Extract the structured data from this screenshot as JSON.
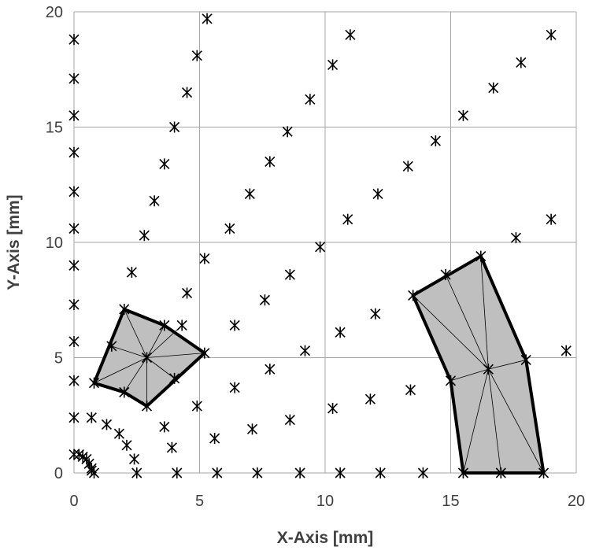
{
  "chart_data": {
    "type": "scatter",
    "title": "",
    "xlabel": "X-Axis [mm]",
    "ylabel": "Y-Axis [mm]",
    "xlim": [
      0,
      20
    ],
    "ylim": [
      0,
      20
    ],
    "xticks": [
      0,
      5,
      10,
      15,
      20
    ],
    "yticks": [
      0,
      5,
      10,
      15,
      20
    ],
    "grid": true,
    "marker": "asterisk",
    "colors": {
      "marker": "#000000",
      "grid": "#a6a6a6",
      "fill": "#bfbfbf",
      "outline": "#000000",
      "text": "#404040"
    },
    "points": [
      [
        0,
        18.8
      ],
      [
        0,
        17.1
      ],
      [
        0,
        15.5
      ],
      [
        0,
        13.9
      ],
      [
        0,
        12.2
      ],
      [
        0,
        10.6
      ],
      [
        0,
        9.0
      ],
      [
        0,
        7.3
      ],
      [
        0,
        5.7
      ],
      [
        0,
        4.0
      ],
      [
        0,
        2.4
      ],
      [
        0,
        0.8
      ],
      [
        0.2,
        0.8
      ],
      [
        0.35,
        0.7
      ],
      [
        0.5,
        0.6
      ],
      [
        0.6,
        0.4
      ],
      [
        0.7,
        0.2
      ],
      [
        0.8,
        0.0
      ],
      [
        0.7,
        0.1
      ],
      [
        0.7,
        2.4
      ],
      [
        1.3,
        2.1
      ],
      [
        1.8,
        1.7
      ],
      [
        2.1,
        1.2
      ],
      [
        2.4,
        0.6
      ],
      [
        2.5,
        0.0
      ],
      [
        3.6,
        2.0
      ],
      [
        3.9,
        1.1
      ],
      [
        4.1,
        0.0
      ],
      [
        5.6,
        1.5
      ],
      [
        5.7,
        0.0
      ],
      [
        7.1,
        1.9
      ],
      [
        7.3,
        0.0
      ],
      [
        8.6,
        2.3
      ],
      [
        9.0,
        0.0
      ],
      [
        10.3,
        2.8
      ],
      [
        10.6,
        0.0
      ],
      [
        11.8,
        3.2
      ],
      [
        12.2,
        0.0
      ],
      [
        13.4,
        3.6
      ],
      [
        13.9,
        0.0
      ],
      [
        0.8,
        3.9
      ],
      [
        2.0,
        3.5
      ],
      [
        2.9,
        2.9
      ],
      [
        4.0,
        4.1
      ],
      [
        5.2,
        5.2
      ],
      [
        4.3,
        6.4
      ],
      [
        3.6,
        6.4
      ],
      [
        2.0,
        7.1
      ],
      [
        1.5,
        5.5
      ],
      [
        2.9,
        5.0
      ],
      [
        4.9,
        2.9
      ],
      [
        6.4,
        3.7
      ],
      [
        7.8,
        4.5
      ],
      [
        9.2,
        5.3
      ],
      [
        10.6,
        6.1
      ],
      [
        12.0,
        6.9
      ],
      [
        13.5,
        7.7
      ],
      [
        14.8,
        8.6
      ],
      [
        16.2,
        9.4
      ],
      [
        17.6,
        10.2
      ],
      [
        19.0,
        11.0
      ],
      [
        4.5,
        7.8
      ],
      [
        6.4,
        6.4
      ],
      [
        7.6,
        7.5
      ],
      [
        8.6,
        8.6
      ],
      [
        9.8,
        9.8
      ],
      [
        10.9,
        11.0
      ],
      [
        12.1,
        12.1
      ],
      [
        13.3,
        13.3
      ],
      [
        14.4,
        14.4
      ],
      [
        15.5,
        15.5
      ],
      [
        16.7,
        16.7
      ],
      [
        17.8,
        17.8
      ],
      [
        19.0,
        19.0
      ],
      [
        2.3,
        8.7
      ],
      [
        2.8,
        10.3
      ],
      [
        3.2,
        11.8
      ],
      [
        3.6,
        13.4
      ],
      [
        4.0,
        15.0
      ],
      [
        4.5,
        16.5
      ],
      [
        4.9,
        18.1
      ],
      [
        5.3,
        19.7
      ],
      [
        5.2,
        9.3
      ],
      [
        6.2,
        10.6
      ],
      [
        7.0,
        12.1
      ],
      [
        7.8,
        13.5
      ],
      [
        8.5,
        14.8
      ],
      [
        9.4,
        16.2
      ],
      [
        10.3,
        17.7
      ],
      [
        11.0,
        19.0
      ],
      [
        15.0,
        4.0
      ],
      [
        16.5,
        4.5
      ],
      [
        18.0,
        4.9
      ],
      [
        19.6,
        5.3
      ],
      [
        15.5,
        0.0
      ],
      [
        17.0,
        0.0
      ],
      [
        18.7,
        0.0
      ]
    ],
    "regions": [
      {
        "center": [
          2.9,
          5.0
        ],
        "outline": [
          [
            0.8,
            3.9
          ],
          [
            2.0,
            7.1
          ],
          [
            3.6,
            6.4
          ],
          [
            5.2,
            5.2
          ],
          [
            2.9,
            2.9
          ],
          [
            2.0,
            3.5
          ]
        ],
        "mesh": [
          [
            0.8,
            3.9
          ],
          [
            1.5,
            5.5
          ],
          [
            2.0,
            7.1
          ],
          [
            3.6,
            6.4
          ],
          [
            4.3,
            6.4
          ],
          [
            5.2,
            5.2
          ],
          [
            4.0,
            4.1
          ],
          [
            2.9,
            2.9
          ],
          [
            2.0,
            3.5
          ]
        ]
      },
      {
        "center": [
          16.5,
          4.5
        ],
        "outline": [
          [
            13.5,
            7.7
          ],
          [
            16.2,
            9.4
          ],
          [
            18.0,
            4.9
          ],
          [
            18.7,
            0.0
          ],
          [
            15.5,
            0.0
          ],
          [
            15.0,
            4.0
          ]
        ],
        "mesh": [
          [
            13.5,
            7.7
          ],
          [
            14.8,
            8.6
          ],
          [
            16.2,
            9.4
          ],
          [
            18.0,
            4.9
          ],
          [
            18.7,
            0.0
          ],
          [
            17.0,
            0.0
          ],
          [
            15.5,
            0.0
          ],
          [
            15.0,
            4.0
          ]
        ]
      }
    ]
  }
}
